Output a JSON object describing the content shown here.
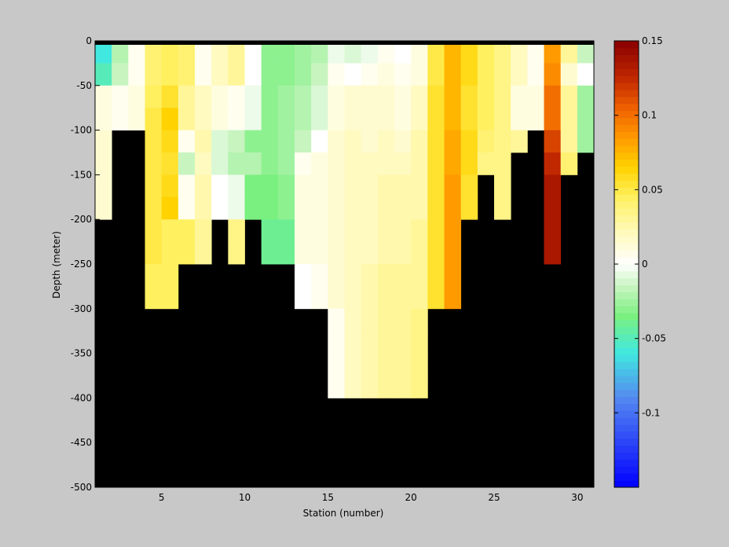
{
  "chart_data": {
    "type": "heatmap",
    "title": "",
    "xlabel": "Station (number)",
    "ylabel": "Depth (meter)",
    "x_ticks": [
      5,
      10,
      15,
      20,
      25,
      30
    ],
    "y_ticks": [
      0,
      -50,
      -100,
      -150,
      -200,
      -250,
      -300,
      -350,
      -400,
      -450,
      -500
    ],
    "xlim": [
      1,
      31
    ],
    "ylim": [
      -500,
      0
    ],
    "x_stations": [
      1,
      2,
      3,
      4,
      5,
      6,
      7,
      8,
      9,
      10,
      11,
      12,
      13,
      14,
      15,
      16,
      17,
      18,
      19,
      20,
      21,
      22,
      23,
      24,
      25,
      26,
      27,
      28,
      29,
      30
    ],
    "depth_bins": [
      0,
      -25,
      -50,
      -75,
      -100,
      -125,
      -150,
      -175,
      -200,
      -225,
      -250,
      -275,
      -300,
      -325,
      -350,
      -375,
      -400
    ],
    "bottom_depth": [
      -200,
      -100,
      -100,
      -300,
      -300,
      -250,
      -250,
      -200,
      -250,
      -200,
      -250,
      -250,
      -300,
      -300,
      -400,
      -400,
      -400,
      -400,
      -400,
      -400,
      -300,
      -300,
      -200,
      -150,
      -200,
      -125,
      -100,
      -250,
      -150,
      -125
    ],
    "values": [
      [
        -0.06,
        -0.05,
        0.01,
        0.01,
        0.015,
        0.015,
        0.015,
        0.015
      ],
      [
        -0.02,
        -0.015,
        0.005,
        0.005
      ],
      [
        0.005,
        0.005,
        0.01,
        0.01
      ],
      [
        0.04,
        0.04,
        0.045,
        0.05,
        0.05,
        0.05,
        0.05,
        0.05,
        0.05,
        0.05,
        0.045,
        0.045
      ],
      [
        0.045,
        0.045,
        0.055,
        0.065,
        0.06,
        0.055,
        0.06,
        0.065,
        0.045,
        0.045,
        0.045,
        0.045
      ],
      [
        0.04,
        0.04,
        0.03,
        0.03,
        0.005,
        -0.015,
        0.005,
        0.005,
        0.045,
        0.045
      ],
      [
        0.005,
        0.005,
        0.02,
        0.02,
        0.025,
        0.02,
        0.025,
        0.025,
        0.03,
        0.03
      ],
      [
        0.02,
        0.02,
        0.01,
        0.01,
        -0.01,
        -0.01,
        0.0,
        0.0
      ],
      [
        0.03,
        0.03,
        0.005,
        0.005,
        -0.015,
        -0.02,
        -0.005,
        -0.005,
        0.035,
        0.035
      ],
      [
        0.0,
        0.0,
        -0.005,
        -0.005,
        -0.03,
        -0.02,
        -0.035,
        -0.035
      ],
      [
        -0.03,
        -0.03,
        -0.03,
        -0.03,
        -0.03,
        -0.03,
        -0.035,
        -0.035,
        -0.04,
        -0.04
      ],
      [
        -0.03,
        -0.03,
        -0.025,
        -0.025,
        -0.025,
        -0.025,
        -0.03,
        -0.03,
        -0.04,
        -0.04
      ],
      [
        -0.025,
        -0.025,
        -0.02,
        -0.02,
        -0.015,
        0.005,
        0.01,
        0.01,
        0.01,
        0.01,
        0.0,
        0.0
      ],
      [
        -0.02,
        -0.015,
        -0.01,
        -0.01,
        0.0,
        0.01,
        0.01,
        0.01,
        0.01,
        0.01,
        0.005,
        0.005
      ],
      [
        -0.005,
        0.005,
        0.01,
        0.01,
        0.015,
        0.015,
        0.015,
        0.015,
        0.015,
        0.015,
        0.015,
        0.015,
        0.005,
        0.005,
        0.005,
        0.005
      ],
      [
        -0.01,
        0.0,
        0.015,
        0.015,
        0.02,
        0.02,
        0.02,
        0.02,
        0.02,
        0.02,
        0.02,
        0.02,
        0.02,
        0.02,
        0.02,
        0.02
      ],
      [
        -0.005,
        0.005,
        0.015,
        0.015,
        0.015,
        0.02,
        0.02,
        0.02,
        0.02,
        0.02,
        0.025,
        0.025,
        0.025,
        0.025,
        0.025,
        0.025
      ],
      [
        0.005,
        0.01,
        0.015,
        0.015,
        0.02,
        0.02,
        0.025,
        0.025,
        0.025,
        0.025,
        0.03,
        0.03,
        0.03,
        0.03,
        0.03,
        0.03
      ],
      [
        0.0,
        0.005,
        0.01,
        0.01,
        0.015,
        0.02,
        0.025,
        0.025,
        0.025,
        0.025,
        0.03,
        0.03,
        0.03,
        0.03,
        0.03,
        0.03
      ],
      [
        0.01,
        0.01,
        0.02,
        0.02,
        0.025,
        0.025,
        0.025,
        0.025,
        0.03,
        0.03,
        0.03,
        0.03,
        0.035,
        0.035,
        0.035,
        0.035
      ],
      [
        0.05,
        0.05,
        0.055,
        0.055,
        0.055,
        0.055,
        0.055,
        0.055,
        0.055,
        0.055,
        0.055,
        0.055
      ],
      [
        0.075,
        0.075,
        0.075,
        0.075,
        0.08,
        0.08,
        0.085,
        0.085,
        0.085,
        0.085,
        0.085,
        0.085
      ],
      [
        0.06,
        0.06,
        0.055,
        0.055,
        0.06,
        0.06,
        0.055,
        0.055
      ],
      [
        0.045,
        0.045,
        0.045,
        0.045,
        0.04,
        0.035
      ],
      [
        0.035,
        0.035,
        0.035,
        0.035,
        0.035,
        0.035,
        0.035,
        0.035
      ],
      [
        0.02,
        0.02,
        0.01,
        0.01,
        0.03
      ],
      [
        0.005,
        0.005,
        0.01,
        0.01
      ],
      [
        0.085,
        0.09,
        0.1,
        0.1,
        0.115,
        0.125,
        0.135,
        0.135,
        0.135,
        0.135
      ],
      [
        0.03,
        0.015,
        0.03,
        0.03,
        0.03,
        0.04
      ],
      [
        -0.015,
        0.0,
        -0.025,
        -0.025,
        -0.025
      ]
    ],
    "colorbar": {
      "range": [
        -0.15,
        0.15
      ],
      "ticks": [
        0.15,
        0.1,
        0.05,
        0,
        -0.05,
        -0.1
      ],
      "tick_labels": [
        "0.15",
        "0.1",
        "0.05",
        "0",
        "-0.05",
        "-0.1"
      ],
      "levels": 64,
      "colormap": [
        [
          -0.15,
          "#0000ff"
        ],
        [
          -0.09,
          "#5588f0"
        ],
        [
          -0.06,
          "#40e8e0"
        ],
        [
          -0.035,
          "#7af080"
        ],
        [
          -0.015,
          "#c8f4c0"
        ],
        [
          0.0,
          "#ffffff"
        ],
        [
          0.02,
          "#fffac0"
        ],
        [
          0.045,
          "#fff060"
        ],
        [
          0.065,
          "#ffd200"
        ],
        [
          0.085,
          "#ff9a00"
        ],
        [
          0.105,
          "#ee6000"
        ],
        [
          0.125,
          "#c02800"
        ],
        [
          0.15,
          "#8a0000"
        ]
      ]
    },
    "colors": {
      "background": "#c8c8c8",
      "nodata": "#000000"
    }
  }
}
